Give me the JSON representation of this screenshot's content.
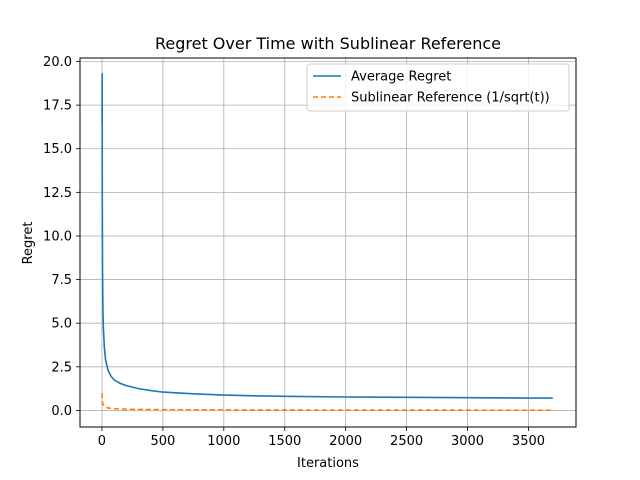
{
  "chart_data": {
    "type": "line",
    "title": "Regret Over Time with Sublinear Reference",
    "xlabel": "Iterations",
    "ylabel": "Regret",
    "xlim": [
      -180,
      3890
    ],
    "ylim": [
      -0.95,
      20.2
    ],
    "xticks": [
      0,
      500,
      1000,
      1500,
      2000,
      2500,
      3000,
      3500
    ],
    "yticks": [
      0.0,
      2.5,
      5.0,
      7.5,
      10.0,
      12.5,
      15.0,
      17.5,
      20.0
    ],
    "xtick_labels": [
      "0",
      "500",
      "1000",
      "1500",
      "2000",
      "2500",
      "3000",
      "3500"
    ],
    "ytick_labels": [
      "0.0",
      "2.5",
      "5.0",
      "7.5",
      "10.0",
      "12.5",
      "15.0",
      "17.5",
      "20.0"
    ],
    "grid": true,
    "legend_position": "top-right",
    "series": [
      {
        "name": "Average Regret",
        "color": "#1f77b4",
        "style": "solid",
        "x": [
          1,
          2,
          3,
          5,
          8,
          12,
          20,
          30,
          50,
          75,
          100,
          150,
          200,
          300,
          400,
          500,
          750,
          1000,
          1250,
          1500,
          2000,
          2500,
          3000,
          3500,
          3700
        ],
        "y": [
          16.5,
          19.3,
          12.0,
          8.0,
          5.8,
          4.7,
          3.6,
          2.9,
          2.3,
          1.95,
          1.75,
          1.55,
          1.42,
          1.25,
          1.14,
          1.05,
          0.95,
          0.88,
          0.84,
          0.81,
          0.77,
          0.75,
          0.73,
          0.71,
          0.71
        ]
      },
      {
        "name": "Sublinear Reference (1/sqrt(t))",
        "color": "#ff7f0e",
        "style": "dashed",
        "x": [
          1,
          2,
          4,
          8,
          16,
          25,
          50,
          100,
          200,
          400,
          800,
          1500,
          2500,
          3700
        ],
        "y": [
          1.0,
          0.71,
          0.5,
          0.35,
          0.25,
          0.2,
          0.14,
          0.1,
          0.07,
          0.05,
          0.035,
          0.026,
          0.02,
          0.016
        ]
      }
    ]
  }
}
